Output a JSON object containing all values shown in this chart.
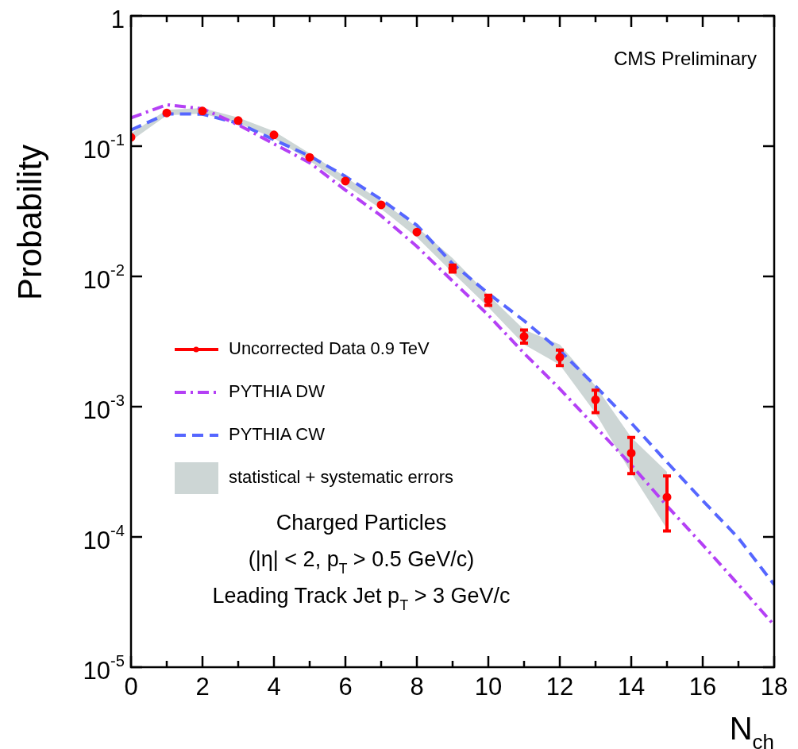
{
  "chart_data": {
    "type": "line",
    "xlabel": "N$_{ch}$",
    "ylabel": "Probability",
    "log": "y",
    "legend": "left",
    "xlim": [
      0,
      18
    ],
    "xticks": [
      0,
      {
        "value": 1,
        "label": null
      },
      2,
      {
        "value": 3,
        "label": null
      },
      4,
      {
        "value": 5,
        "label": null
      },
      6,
      {
        "value": 7,
        "label": null
      },
      8,
      {
        "value": 9,
        "label": null
      },
      10,
      {
        "value": 11,
        "label": null
      },
      12,
      {
        "value": 13,
        "label": null
      },
      14,
      {
        "value": 15,
        "label": null
      },
      16,
      {
        "value": 17,
        "label": null
      },
      18
    ],
    "ylim": [
      1e-05,
      1
    ],
    "yticks": [
      {
        "value": 1e-05,
        "label": "10$^{-5}$"
      },
      {
        "value": 0.0001,
        "label": "10$^{-4}$"
      },
      {
        "value": 0.001,
        "label": "10$^{-3}$"
      },
      {
        "value": 0.01,
        "label": "10$^{-2}$"
      },
      {
        "value": 0.1,
        "label": "10$^{-1}$"
      },
      1
    ],
    "series": [
      {
        "name": "Uncorrected Data 0.9 TeV",
        "type": "scatter",
        "color": "#ff0000",
        "marker": "circle",
        "x": [
          0,
          1,
          2,
          3,
          4,
          5,
          6,
          7,
          8,
          9,
          10,
          11,
          12,
          13,
          14,
          15
        ],
        "values": [
          0.117,
          0.18,
          0.186,
          0.157,
          0.122,
          0.082,
          0.054,
          0.0354,
          0.0219,
          0.0115,
          0.0066,
          0.00346,
          0.00239,
          0.00113,
          0.00044,
          0.000202
        ],
        "errors": [
          null,
          null,
          null,
          null,
          null,
          null,
          null,
          null,
          null,
          [
            0.0108,
            0.0122
          ],
          [
            0.006,
            0.00716
          ],
          [
            0.00307,
            0.00387
          ],
          [
            0.00207,
            0.00272
          ],
          [
            0.0009,
            0.00134
          ],
          [
            0.000306,
            0.00058
          ],
          [
            0.000111,
            0.000294
          ]
        ],
        "lower": [
          0.11,
          0.172,
          0.178,
          0.15,
          0.115,
          0.077,
          0.05,
          0.033,
          0.02,
          0.0107,
          0.0058,
          0.003,
          0.0021,
          0.00089,
          0.00031,
          0.000115
        ],
        "upper": [
          0.125,
          0.19,
          0.196,
          0.166,
          0.13,
          0.088,
          0.058,
          0.038,
          0.024,
          0.0138,
          0.0072,
          0.0039,
          0.003,
          0.00144,
          0.00058,
          0.000316
        ]
      },
      {
        "name": "PYTHIA DW",
        "color": "#b440f5",
        "marker": "none",
        "line_style": "dashdot",
        "x": [
          0,
          1,
          2,
          3,
          4,
          5,
          6,
          7,
          8,
          9,
          10,
          11,
          12,
          13,
          14,
          15,
          16,
          17,
          18
        ],
        "values": [
          0.165,
          0.208,
          0.194,
          0.146,
          0.104,
          0.0746,
          0.046,
          0.0292,
          0.017,
          0.0092,
          0.00504,
          0.00257,
          0.00137,
          0.0007,
          0.000357,
          0.000173,
          8.7e-05,
          4.3e-05,
          2.1e-05
        ]
      },
      {
        "name": "PYTHIA CW",
        "color": "#5566ff",
        "marker": "none",
        "line_style": "dashed",
        "x": [
          0,
          1,
          2,
          3,
          4,
          5,
          6,
          7,
          8,
          9,
          10,
          11,
          12,
          13,
          14,
          15,
          16,
          17,
          18
        ],
        "values": [
          0.133,
          0.177,
          0.176,
          0.15,
          0.112,
          0.084,
          0.0586,
          0.039,
          0.0247,
          0.0125,
          0.0074,
          0.00457,
          0.0027,
          0.00144,
          0.00075,
          0.000375,
          0.00019,
          9.8e-05,
          4.3e-05
        ]
      }
    ],
    "annotations": [
      "CMS Preliminary",
      "statistical + systematic errors",
      "Charged Particles",
      "(|η| < 2, p$_{T}$ > 0.5 GeV/c)",
      "Leading Track Jet p$_{T}$ > 3 GeV/c"
    ]
  }
}
